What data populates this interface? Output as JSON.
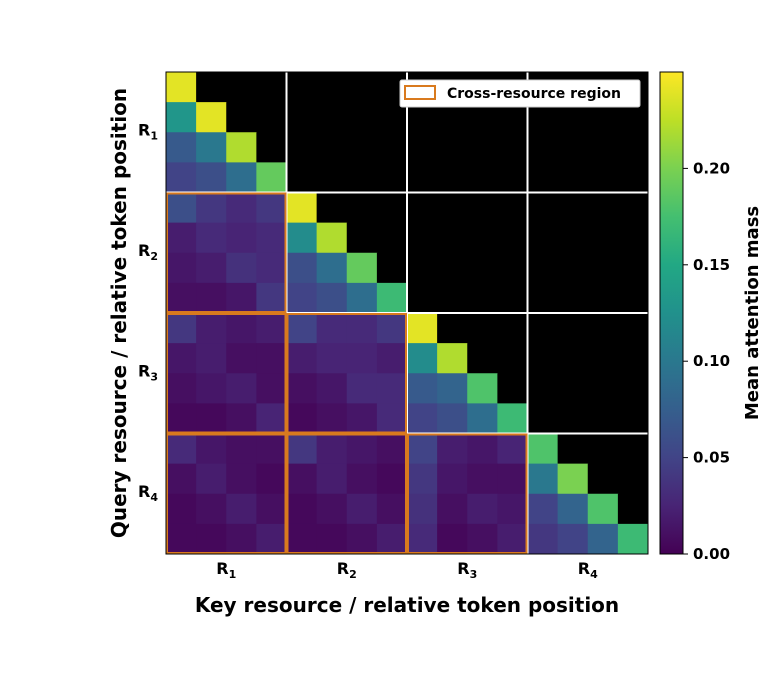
{
  "chart_data": {
    "type": "heatmap",
    "xlabel": "Key resource / relative token position",
    "ylabel": "Query resource / relative token position",
    "groups": [
      {
        "letter": "R",
        "sub": "1"
      },
      {
        "letter": "R",
        "sub": "2"
      },
      {
        "letter": "R",
        "sub": "3"
      },
      {
        "letter": "R",
        "sub": "4"
      }
    ],
    "tokens_per_group": 4,
    "colorbar": {
      "label": "Mean attention mass",
      "min": 0.0,
      "max": 0.25,
      "colormap": "viridis",
      "ticks": [
        "0.00",
        "0.05",
        "0.10",
        "0.15",
        "0.20"
      ],
      "tick_values": [
        0.0,
        0.05,
        0.1,
        0.15,
        0.2
      ]
    },
    "legend": {
      "label": "Cross-resource region",
      "placement": "top-right",
      "edge_color": "#d97a1e"
    },
    "masked_color": "#000000",
    "matrix": [
      [
        0.24,
        null,
        null,
        null,
        null,
        null,
        null,
        null,
        null,
        null,
        null,
        null,
        null,
        null,
        null,
        null
      ],
      [
        0.13,
        0.24,
        null,
        null,
        null,
        null,
        null,
        null,
        null,
        null,
        null,
        null,
        null,
        null,
        null,
        null
      ],
      [
        0.07,
        0.1,
        0.22,
        null,
        null,
        null,
        null,
        null,
        null,
        null,
        null,
        null,
        null,
        null,
        null,
        null
      ],
      [
        0.05,
        0.06,
        0.09,
        0.19,
        null,
        null,
        null,
        null,
        null,
        null,
        null,
        null,
        null,
        null,
        null,
        null
      ],
      [
        0.06,
        0.04,
        0.03,
        0.04,
        0.24,
        null,
        null,
        null,
        null,
        null,
        null,
        null,
        null,
        null,
        null,
        null
      ],
      [
        0.02,
        0.03,
        0.025,
        0.03,
        0.12,
        0.22,
        null,
        null,
        null,
        null,
        null,
        null,
        null,
        null,
        null,
        null
      ],
      [
        0.015,
        0.02,
        0.035,
        0.03,
        0.06,
        0.09,
        0.19,
        null,
        null,
        null,
        null,
        null,
        null,
        null,
        null,
        null
      ],
      [
        0.01,
        0.01,
        0.015,
        0.04,
        0.05,
        0.06,
        0.09,
        0.17,
        null,
        null,
        null,
        null,
        null,
        null,
        null,
        null
      ],
      [
        0.04,
        0.02,
        0.015,
        0.02,
        0.05,
        0.03,
        0.03,
        0.04,
        0.24,
        null,
        null,
        null,
        null,
        null,
        null,
        null
      ],
      [
        0.015,
        0.02,
        0.01,
        0.01,
        0.02,
        0.025,
        0.025,
        0.02,
        0.12,
        0.22,
        null,
        null,
        null,
        null,
        null,
        null
      ],
      [
        0.01,
        0.015,
        0.02,
        0.01,
        0.01,
        0.015,
        0.03,
        0.03,
        0.07,
        0.08,
        0.18,
        null,
        null,
        null,
        null,
        null
      ],
      [
        0.005,
        0.005,
        0.01,
        0.025,
        0.005,
        0.01,
        0.015,
        0.03,
        0.05,
        0.06,
        0.09,
        0.17,
        null,
        null,
        null,
        null
      ],
      [
        0.03,
        0.015,
        0.01,
        0.01,
        0.04,
        0.02,
        0.015,
        0.01,
        0.05,
        0.02,
        0.015,
        0.025,
        0.18,
        null,
        null,
        null
      ],
      [
        0.01,
        0.02,
        0.01,
        0.005,
        0.01,
        0.02,
        0.01,
        0.005,
        0.04,
        0.015,
        0.01,
        0.01,
        0.1,
        0.2,
        null,
        null
      ],
      [
        0.005,
        0.01,
        0.02,
        0.01,
        0.005,
        0.01,
        0.02,
        0.01,
        0.035,
        0.01,
        0.02,
        0.015,
        0.05,
        0.08,
        0.18,
        null
      ],
      [
        0.005,
        0.005,
        0.01,
        0.02,
        0.005,
        0.005,
        0.01,
        0.02,
        0.03,
        0.005,
        0.01,
        0.02,
        0.04,
        0.05,
        0.08,
        0.17
      ]
    ]
  }
}
